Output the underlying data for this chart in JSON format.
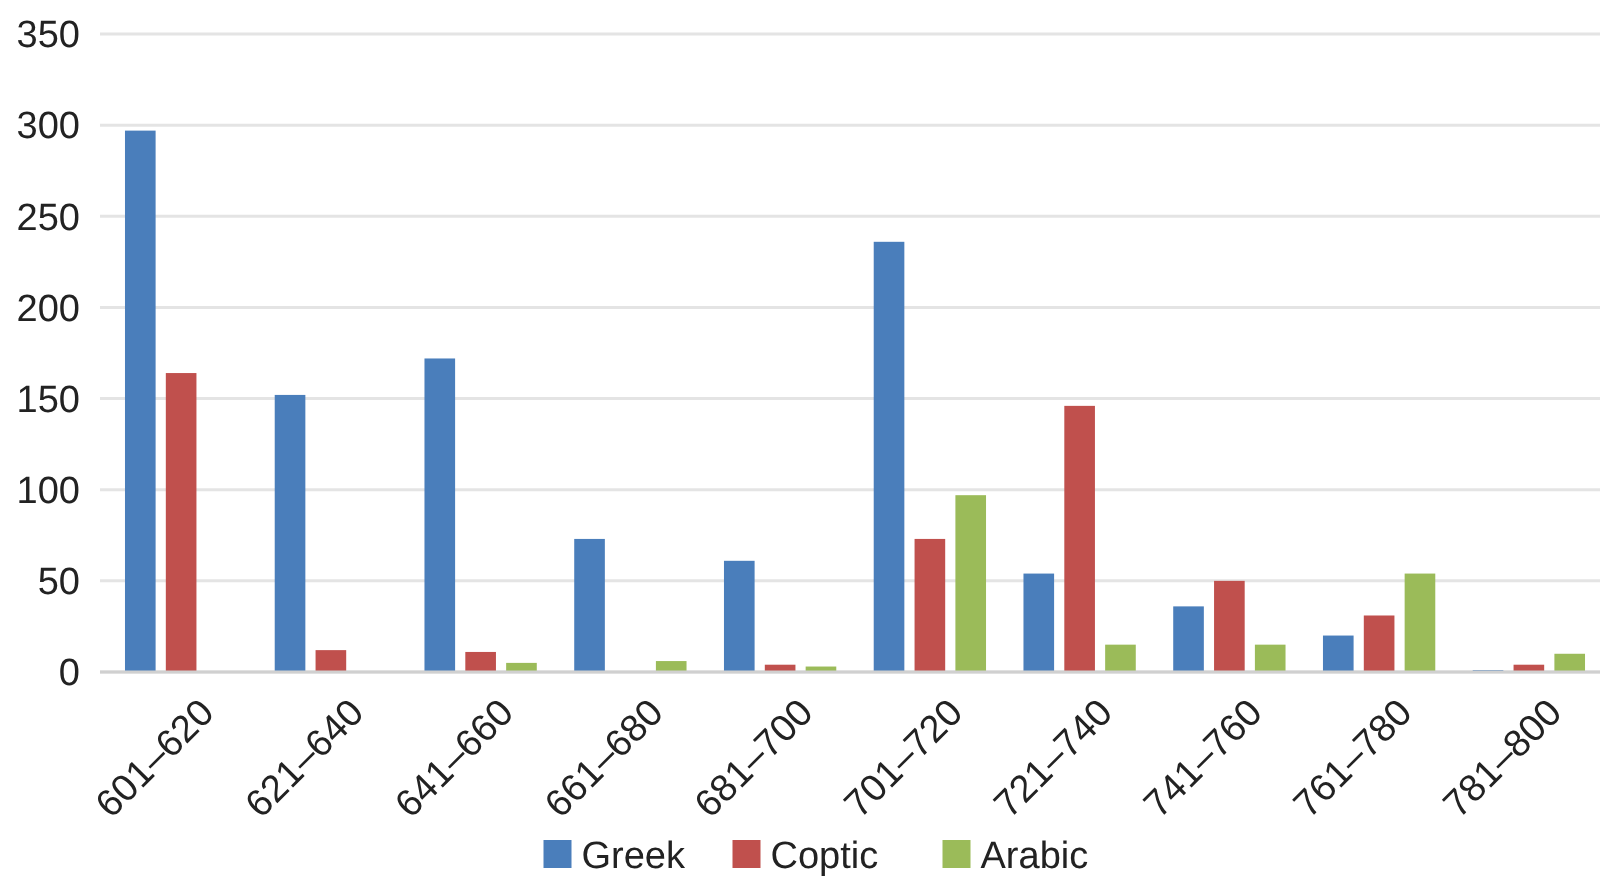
{
  "chart_data": {
    "type": "bar",
    "categories": [
      "601–620",
      "621–640",
      "641–660",
      "661–680",
      "681–700",
      "701–720",
      "721–740",
      "741–760",
      "761–780",
      "781–800"
    ],
    "series": [
      {
        "name": "Greek",
        "color": "#4a7ebb",
        "values": [
          297,
          152,
          172,
          73,
          61,
          236,
          54,
          36,
          20,
          1
        ]
      },
      {
        "name": "Coptic",
        "color": "#c0504d",
        "values": [
          164,
          12,
          11,
          0,
          4,
          73,
          146,
          50,
          31,
          4
        ]
      },
      {
        "name": "Arabic",
        "color": "#9bbb59",
        "values": [
          0,
          0,
          5,
          6,
          3,
          97,
          15,
          15,
          54,
          10
        ]
      }
    ],
    "ylim": [
      0,
      350
    ],
    "yticks": [
      0,
      50,
      100,
      150,
      200,
      250,
      300,
      350
    ],
    "grid": "y",
    "legend": "bottom"
  }
}
